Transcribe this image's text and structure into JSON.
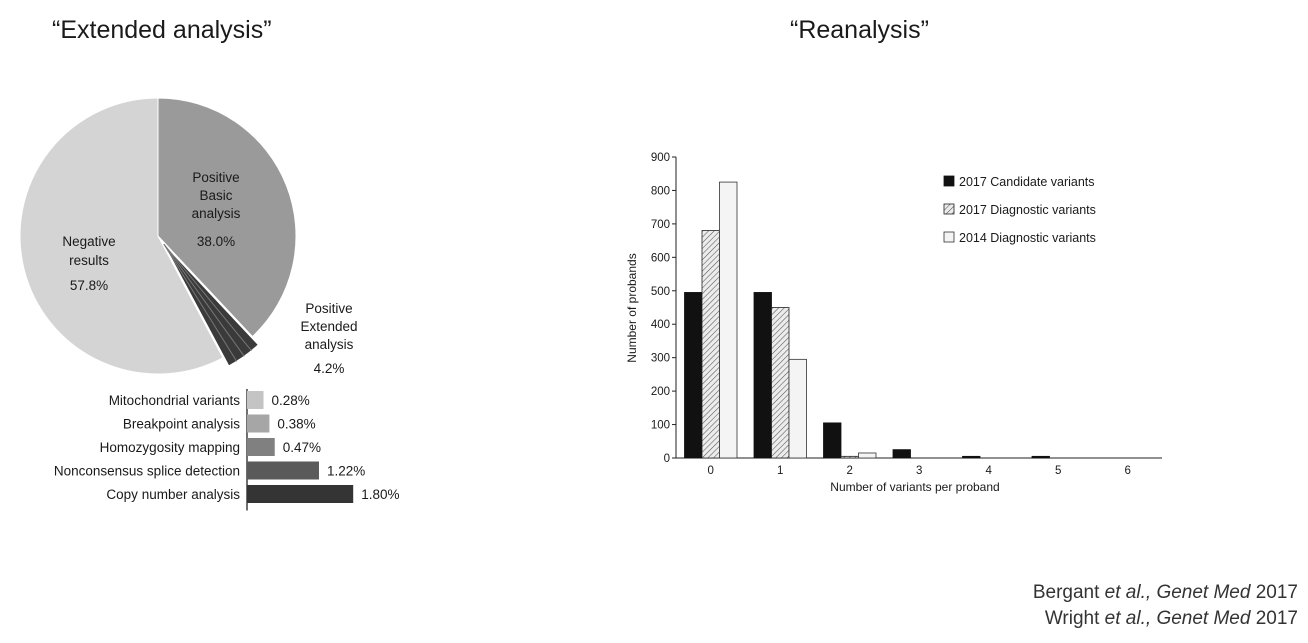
{
  "titles": {
    "left": "“Extended analysis”",
    "right": "“Reanalysis”"
  },
  "citations": [
    {
      "authors": "Bergant",
      "etal": "et al.,",
      "journal": "Genet Med",
      "year": "2017"
    },
    {
      "authors": "Wright",
      "etal": "et al.,",
      "journal": "Genet Med",
      "year": "2017"
    }
  ],
  "chart_data": [
    {
      "type": "pie",
      "slices": [
        {
          "label_lines": [
            "Positive",
            "Basic",
            "analysis"
          ],
          "value": 38.0,
          "value_label": "38.0%",
          "color": "#9a9a9a"
        },
        {
          "label_lines": [
            "Positive",
            "Extended",
            "analysis"
          ],
          "value": 4.2,
          "value_label": "4.2%",
          "color": "#3a3a3a",
          "exploded": true
        },
        {
          "label_lines": [
            "Negative",
            "results"
          ],
          "value": 57.8,
          "value_label": "57.8%",
          "color": "#d4d4d4"
        }
      ]
    },
    {
      "type": "bar",
      "orientation": "horizontal",
      "categories": [
        "Mitochondrial variants",
        "Breakpoint analysis",
        "Homozygosity mapping",
        "Nonconsensus splice detection",
        "Copy number analysis"
      ],
      "values": [
        0.28,
        0.38,
        0.47,
        1.22,
        1.8
      ],
      "value_labels": [
        "0.28%",
        "0.38%",
        "0.47%",
        "1.22%",
        "1.80%"
      ],
      "colors": [
        "#c4c4c4",
        "#a6a6a6",
        "#808080",
        "#5a5a5a",
        "#343434"
      ]
    },
    {
      "type": "bar",
      "categories": [
        "0",
        "1",
        "2",
        "3",
        "4",
        "5",
        "6"
      ],
      "xlabel": "Number of variants per proband",
      "ylabel": "Number of probands",
      "ylim": [
        0,
        900
      ],
      "yticks": [
        0,
        100,
        200,
        300,
        400,
        500,
        600,
        700,
        800,
        900
      ],
      "legend_position": "top-right",
      "series": [
        {
          "name": "2017 Candidate variants",
          "values": [
            495,
            495,
            105,
            25,
            5,
            5,
            0
          ],
          "style": "solid-black"
        },
        {
          "name": "2017 Diagnostic variants",
          "values": [
            680,
            450,
            5,
            0,
            0,
            0,
            0
          ],
          "style": "hatched"
        },
        {
          "name": "2014 Diagnostic variants",
          "values": [
            825,
            295,
            15,
            0,
            0,
            0,
            0
          ],
          "style": "white"
        }
      ]
    }
  ]
}
